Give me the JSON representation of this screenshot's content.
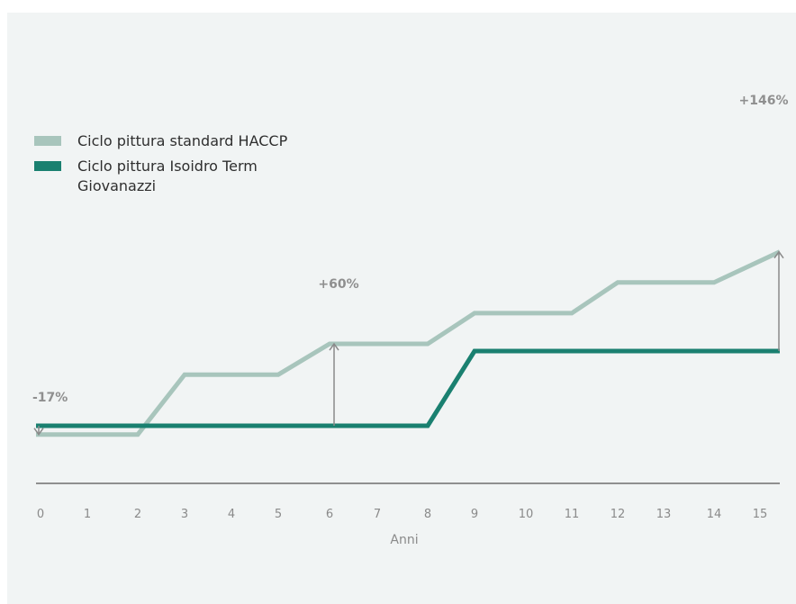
{
  "chart_data": {
    "type": "line",
    "xlabel": "Anni",
    "categories": [
      "0",
      "1",
      "2",
      "3",
      "4",
      "5",
      "6",
      "7",
      "8",
      "9",
      "10",
      "11",
      "12",
      "13",
      "14",
      "15"
    ],
    "xlim": [
      0,
      15.4
    ],
    "ylim": [
      0.8,
      3.9
    ],
    "series": [
      {
        "name": "Ciclo pittura standard HACCP",
        "color": "#a8c5bc",
        "points": [
          [
            0,
            0.83
          ],
          [
            2,
            0.83
          ],
          [
            3,
            2.0
          ],
          [
            5,
            2.0
          ],
          [
            6,
            2.6
          ],
          [
            8,
            2.6
          ],
          [
            9,
            3.2
          ],
          [
            11,
            3.2
          ],
          [
            12,
            3.8
          ],
          [
            14,
            3.8
          ],
          [
            15.4,
            4.4
          ]
        ]
      },
      {
        "name": "Ciclo pittura Isoidro Term Giovanazzi",
        "color": "#1a8070",
        "points": [
          [
            0,
            1.0
          ],
          [
            8,
            1.0
          ],
          [
            9,
            2.46
          ],
          [
            15.4,
            2.46
          ]
        ]
      }
    ],
    "annotations": [
      {
        "label": "-17%",
        "x": 0
      },
      {
        "label": "+60%",
        "x": 6
      },
      {
        "label": "+146%",
        "x": 15.4
      }
    ]
  }
}
